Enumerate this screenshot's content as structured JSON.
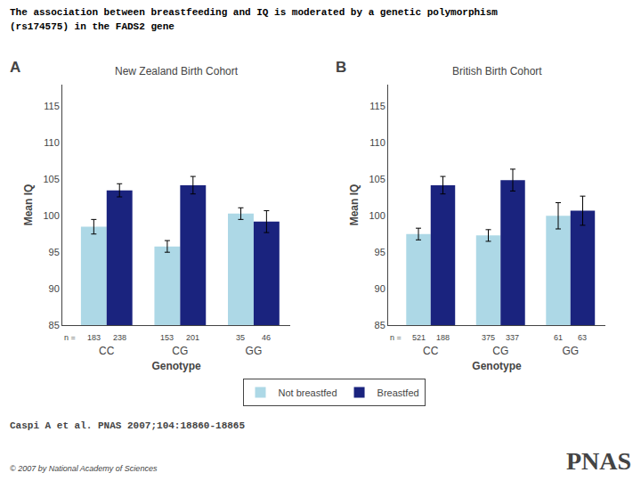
{
  "title": [
    "The association between breastfeeding and IQ is moderated by a genetic polymorphism",
    "(rs174575) in the FADS2 gene"
  ],
  "legend": "lower center",
  "annotations": [
    "Caspi A et al. PNAS 2007;104:18860-18865",
    "© 2007 by National Academy of Sciences",
    "PNAS"
  ],
  "chart_data": [
    {
      "type": "bar",
      "title": "A",
      "subtitle": "New Zealand Birth Cohort",
      "categories": [
        "CC",
        "CG",
        "GG"
      ],
      "series": [
        {
          "name": "Not breastfed",
          "color": "#ADD8E6",
          "values": [
            98.5,
            95.8,
            100.3
          ],
          "errors": [
            1.0,
            0.8,
            0.8
          ],
          "n": [
            183,
            153,
            35
          ]
        },
        {
          "name": "Breastfed",
          "color": "#1A237E",
          "values": [
            103.5,
            104.2,
            99.2
          ],
          "errors": [
            0.9,
            1.2,
            1.5
          ],
          "n": [
            238,
            201,
            46
          ]
        }
      ],
      "annotations": [
        "n ="
      ],
      "xlabel": "Genotype",
      "ylabel": "Mean IQ",
      "ylim": [
        85,
        118
      ],
      "yticks": [
        85,
        90,
        95,
        100,
        105,
        110,
        115
      ],
      "grid": false
    },
    {
      "type": "bar",
      "title": "B",
      "subtitle": "British Birth Cohort",
      "categories": [
        "CC",
        "CG",
        "GG"
      ],
      "series": [
        {
          "name": "Not breastfed",
          "color": "#ADD8E6",
          "values": [
            97.5,
            97.3,
            100.0
          ],
          "errors": [
            0.8,
            0.8,
            1.8
          ],
          "n": [
            521,
            375,
            61
          ]
        },
        {
          "name": "Breastfed",
          "color": "#1A237E",
          "values": [
            104.2,
            104.9,
            100.7
          ],
          "errors": [
            1.2,
            1.5,
            2.0
          ],
          "n": [
            188,
            337,
            63
          ]
        }
      ],
      "annotations": [
        "n ="
      ],
      "xlabel": "Genotype",
      "ylabel": "Mean IQ",
      "ylim": [
        85,
        118
      ],
      "yticks": [
        85,
        90,
        95,
        100,
        105,
        110,
        115
      ],
      "grid": false
    }
  ]
}
